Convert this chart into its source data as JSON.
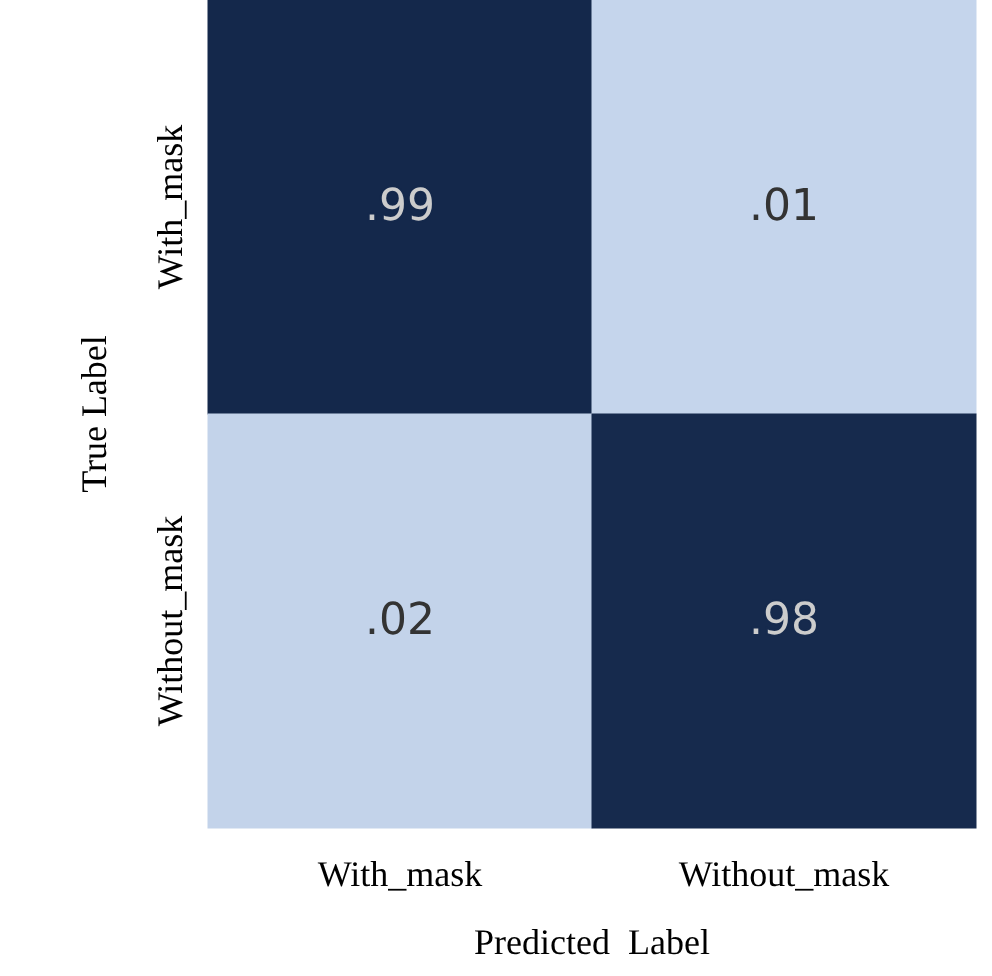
{
  "chart_data": {
    "type": "heatmap",
    "xlabel": "Predicted  Label",
    "ylabel": "True Label",
    "categories": [
      "With_mask",
      "Without_mask"
    ],
    "y_categories": [
      "With_mask",
      "Without_mask"
    ],
    "cells": [
      [
        0.99,
        0.01
      ],
      [
        0.02,
        0.98
      ]
    ],
    "cell_labels": [
      [
        ".99",
        ".01"
      ],
      [
        ".02",
        ".98"
      ]
    ]
  }
}
